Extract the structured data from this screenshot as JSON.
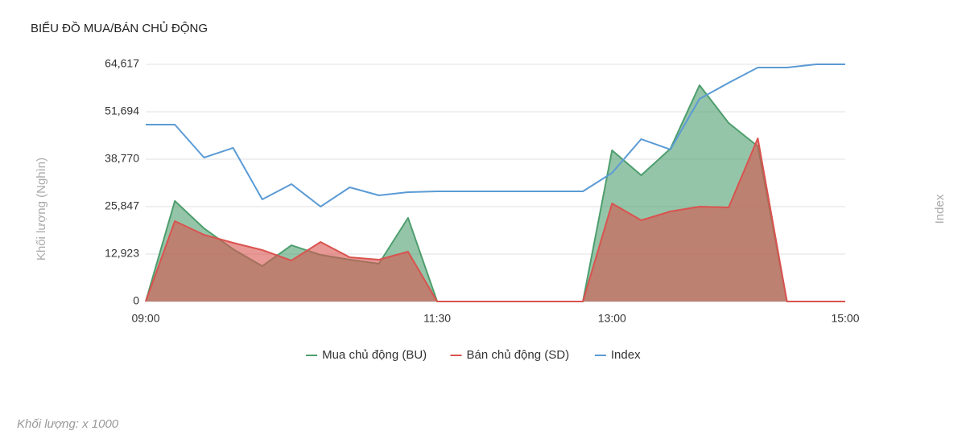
{
  "chart_data": {
    "type": "area",
    "title": "BIỂU ĐỒ MUA/BÁN CHỦ ĐỘNG",
    "y_label": "Khối lượng (Nghìn)",
    "y2_label": "Index",
    "note": "Khối lượng: x 1000",
    "categories": [
      "09:00",
      null,
      null,
      null,
      null,
      null,
      null,
      null,
      null,
      null,
      "11:30",
      null,
      null,
      null,
      null,
      null,
      "13:00",
      null,
      null,
      null,
      null,
      null,
      null,
      null,
      "15:00"
    ],
    "ylim": [
      0,
      64617
    ],
    "yticks": [
      0,
      {
        "value": 12923,
        "label": "12,923"
      },
      {
        "value": 25847,
        "label": "25,847"
      },
      {
        "value": 38770,
        "label": "38,770"
      },
      {
        "value": 51694,
        "label": "51,694"
      },
      {
        "value": 64617,
        "label": "64,617"
      }
    ],
    "grid": true,
    "series": [
      {
        "name": "Mua chủ động (BU)",
        "color": "#4e9e6e",
        "fill": true,
        "values": [
          0,
          27380,
          19930,
          14240,
          9640,
          15330,
          12700,
          11390,
          10290,
          22780,
          0,
          0,
          0,
          0,
          0,
          0,
          41180,
          34390,
          41620,
          58920,
          48630,
          42270,
          0,
          0,
          0
        ]
      },
      {
        "name": "Bán chủ động (SD)",
        "color": "#d9534f",
        "fill": true,
        "values": [
          0,
          21900,
          18180,
          15990,
          14020,
          11170,
          16210,
          12050,
          11390,
          13580,
          0,
          0,
          0,
          0,
          0,
          0,
          26720,
          22120,
          24530,
          25850,
          25630,
          44460,
          0,
          0,
          0
        ]
      },
      {
        "name": "Index",
        "color": "#5b9bd5",
        "fill": false,
        "values": [
          48190,
          48190,
          39210,
          41840,
          27820,
          31980,
          25850,
          31100,
          28910,
          29790,
          30010,
          30010,
          30010,
          30010,
          30010,
          30010,
          35050,
          44240,
          41400,
          55200,
          59580,
          63740,
          63740,
          64617,
          64617
        ]
      }
    ]
  }
}
